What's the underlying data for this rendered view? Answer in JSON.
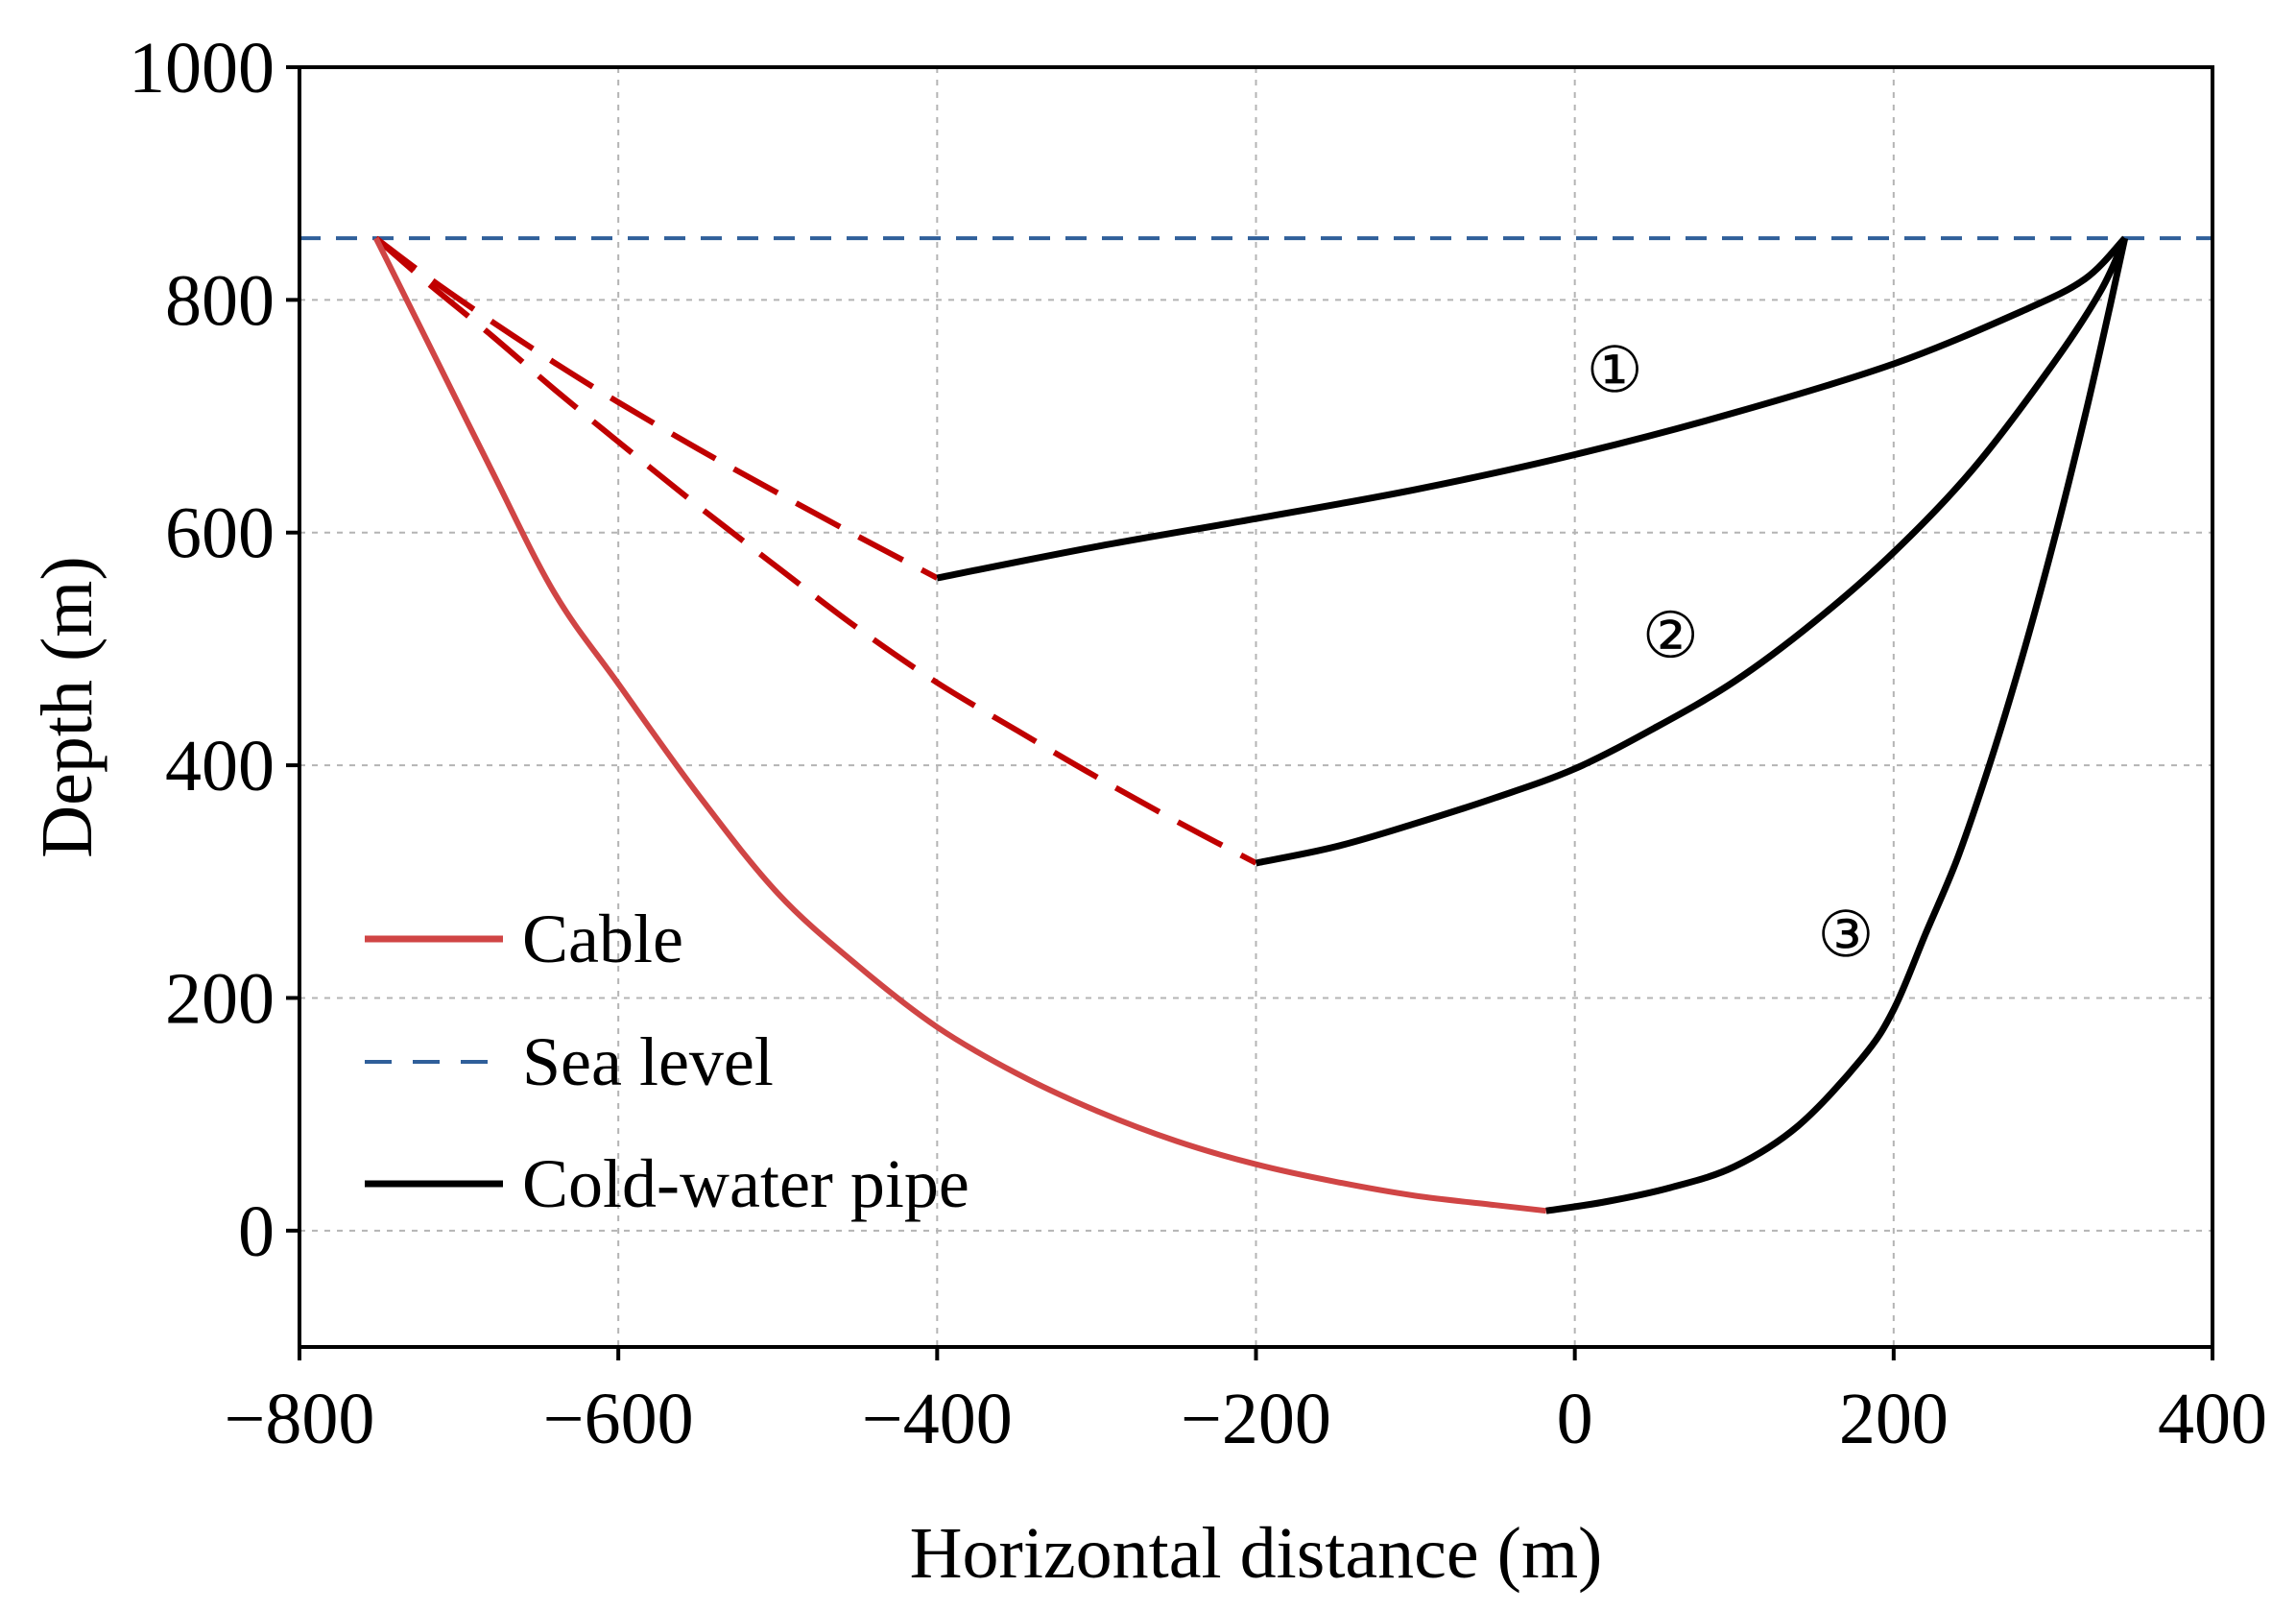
{
  "chart_data": {
    "type": "line",
    "title": "",
    "xlabel": "Horizontal distance (m)",
    "ylabel": "Depth (m)",
    "xlim": [
      -800,
      400
    ],
    "ylim": [
      -100,
      1000
    ],
    "xticks": [
      -800,
      -600,
      -400,
      -200,
      0,
      200,
      400
    ],
    "xtick_labels": [
      "−800",
      "−600",
      "−400",
      "−200",
      "0",
      "200",
      "400"
    ],
    "yticks": [
      0,
      200,
      400,
      600,
      800,
      1000
    ],
    "ytick_labels": [
      "0",
      "200",
      "400",
      "600",
      "800",
      "1000"
    ],
    "grid": true,
    "legend": {
      "placement": "lower-left",
      "entries": [
        {
          "label": "Cable",
          "color": "#d04545",
          "style": "solid"
        },
        {
          "label": "Sea level",
          "color": "#2f5f9a",
          "style": "dashed"
        },
        {
          "label": "Cold-water pipe",
          "color": "#000000",
          "style": "solid"
        }
      ]
    },
    "sea_level": {
      "y": 853,
      "color": "#2f5f9a",
      "style": "dashed"
    },
    "series": [
      {
        "legend": "Cable",
        "style": "dashed",
        "color": "#c00000",
        "points": [
          [
            -752,
            853
          ],
          [
            -720,
            820
          ],
          [
            -680,
            782
          ],
          [
            -640,
            746
          ],
          [
            -600,
            712
          ],
          [
            -550,
            672
          ],
          [
            -500,
            634
          ],
          [
            -450,
            597
          ],
          [
            -400,
            561
          ]
        ]
      },
      {
        "legend": "Cold-water pipe",
        "annotation": "①",
        "style": "solid",
        "color": "#000000",
        "points": [
          [
            -400,
            561
          ],
          [
            -300,
            588
          ],
          [
            -200,
            612
          ],
          [
            -100,
            637
          ],
          [
            0,
            667
          ],
          [
            100,
            703
          ],
          [
            200,
            745
          ],
          [
            280,
            790
          ],
          [
            320,
            818
          ],
          [
            345,
            853
          ]
        ]
      },
      {
        "legend": "Cable",
        "style": "dashed",
        "color": "#c00000",
        "points": [
          [
            -752,
            853
          ],
          [
            -720,
            815
          ],
          [
            -680,
            770
          ],
          [
            -640,
            723
          ],
          [
            -600,
            678
          ],
          [
            -550,
            623
          ],
          [
            -500,
            570
          ],
          [
            -450,
            518
          ],
          [
            -400,
            471
          ],
          [
            -350,
            430
          ],
          [
            -300,
            390
          ],
          [
            -250,
            352
          ],
          [
            -200,
            316
          ]
        ]
      },
      {
        "legend": "Cold-water pipe",
        "annotation": "②",
        "style": "solid",
        "color": "#000000",
        "points": [
          [
            -200,
            316
          ],
          [
            -150,
            330
          ],
          [
            -100,
            350
          ],
          [
            -50,
            372
          ],
          [
            0,
            397
          ],
          [
            50,
            432
          ],
          [
            100,
            472
          ],
          [
            150,
            523
          ],
          [
            200,
            583
          ],
          [
            250,
            655
          ],
          [
            300,
            745
          ],
          [
            330,
            808
          ],
          [
            345,
            853
          ]
        ]
      },
      {
        "legend": "Cable",
        "style": "solid",
        "color": "#d04545",
        "points": [
          [
            -752,
            853
          ],
          [
            -720,
            765
          ],
          [
            -680,
            655
          ],
          [
            -640,
            548
          ],
          [
            -600,
            470
          ],
          [
            -550,
            375
          ],
          [
            -500,
            290
          ],
          [
            -450,
            228
          ],
          [
            -400,
            175
          ],
          [
            -350,
            135
          ],
          [
            -300,
            103
          ],
          [
            -250,
            77
          ],
          [
            -200,
            57
          ],
          [
            -150,
            42
          ],
          [
            -100,
            30
          ],
          [
            -50,
            22
          ],
          [
            -18,
            17
          ]
        ]
      },
      {
        "legend": "Cold-water pipe",
        "annotation": "③",
        "style": "solid",
        "color": "#000000",
        "points": [
          [
            -18,
            17
          ],
          [
            20,
            25
          ],
          [
            60,
            37
          ],
          [
            100,
            55
          ],
          [
            140,
            90
          ],
          [
            180,
            148
          ],
          [
            200,
            190
          ],
          [
            220,
            255
          ],
          [
            240,
            320
          ],
          [
            260,
            400
          ],
          [
            280,
            490
          ],
          [
            300,
            590
          ],
          [
            320,
            700
          ],
          [
            335,
            790
          ],
          [
            345,
            853
          ]
        ]
      }
    ],
    "annotations": [
      {
        "text": "①",
        "x": 25,
        "y": 740
      },
      {
        "text": "②",
        "x": 60,
        "y": 512
      },
      {
        "text": "③",
        "x": 170,
        "y": 255
      }
    ]
  }
}
